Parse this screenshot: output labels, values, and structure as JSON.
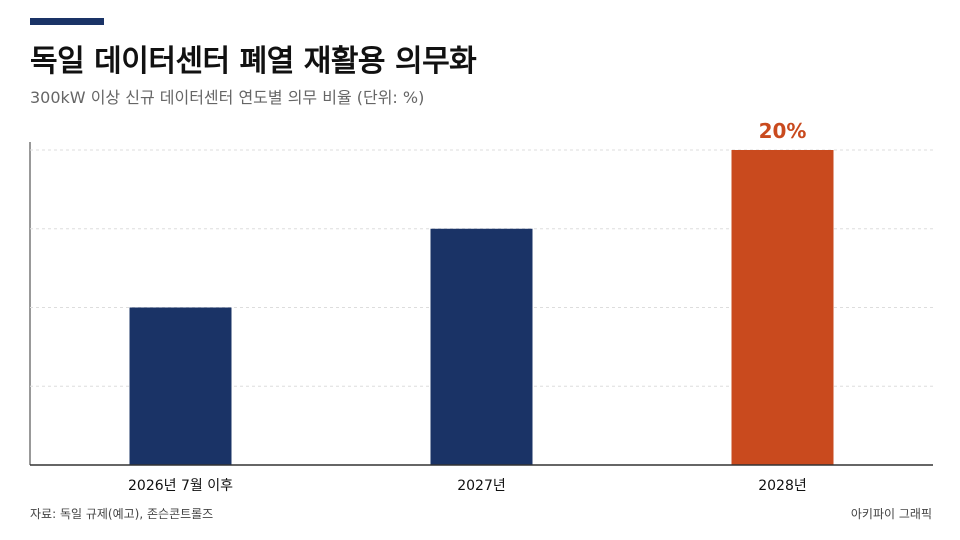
{
  "header": {
    "title": "독일 데이터센터 폐열 재활용 의무화",
    "subtitle": "300kW 이상 신규 데이터센터 연도별 의무 비율 (단위: %)"
  },
  "footer": {
    "source": "자료: 독일 규제(예고), 존슨콘트롤즈",
    "credit": "아키파이 그래픽"
  },
  "colors": {
    "accent": "#1a3366",
    "bar_default": "#1a3366",
    "bar_highlight": "#c94a1e",
    "grid": "#dddddd",
    "axis": "#333333"
  },
  "chart_data": {
    "type": "bar",
    "categories": [
      "2026년 7월 이후",
      "2027년",
      "2028년"
    ],
    "values": [
      10,
      15,
      20
    ],
    "data_labels": [
      "",
      "",
      "20%"
    ],
    "highlight_index": 2,
    "ylim": [
      0,
      20
    ],
    "grid": true,
    "xlabel": "",
    "ylabel": ""
  }
}
